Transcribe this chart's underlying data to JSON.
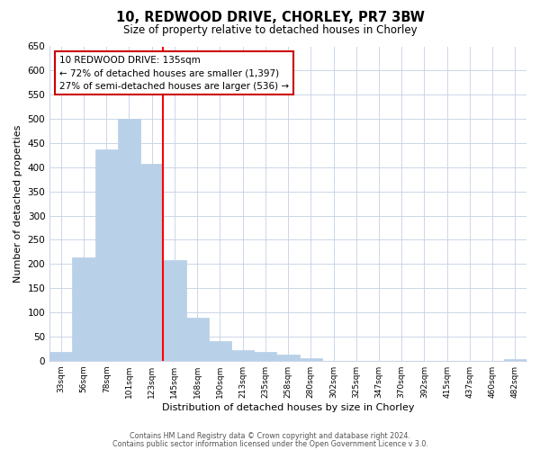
{
  "title": "10, REDWOOD DRIVE, CHORLEY, PR7 3BW",
  "subtitle": "Size of property relative to detached houses in Chorley",
  "xlabel": "Distribution of detached houses by size in Chorley",
  "ylabel": "Number of detached properties",
  "bar_labels": [
    "33sqm",
    "56sqm",
    "78sqm",
    "101sqm",
    "123sqm",
    "145sqm",
    "168sqm",
    "190sqm",
    "213sqm",
    "235sqm",
    "258sqm",
    "280sqm",
    "302sqm",
    "325sqm",
    "347sqm",
    "370sqm",
    "392sqm",
    "415sqm",
    "437sqm",
    "460sqm",
    "482sqm"
  ],
  "bar_values": [
    18,
    213,
    437,
    500,
    408,
    207,
    88,
    40,
    22,
    18,
    12,
    5,
    0,
    0,
    0,
    0,
    0,
    0,
    0,
    0,
    3
  ],
  "bar_color": "#b8d0e8",
  "bar_edge_color": "#b8d0e8",
  "vline_x": 4.5,
  "vline_color": "red",
  "ylim": [
    0,
    650
  ],
  "yticks": [
    0,
    50,
    100,
    150,
    200,
    250,
    300,
    350,
    400,
    450,
    500,
    550,
    600,
    650
  ],
  "annotation_title": "10 REDWOOD DRIVE: 135sqm",
  "annotation_line1": "← 72% of detached houses are smaller (1,397)",
  "annotation_line2": "27% of semi-detached houses are larger (536) →",
  "footer1": "Contains HM Land Registry data © Crown copyright and database right 2024.",
  "footer2": "Contains public sector information licensed under the Open Government Licence v 3.0.",
  "bg_color": "#ffffff",
  "grid_color": "#ccd6e8"
}
